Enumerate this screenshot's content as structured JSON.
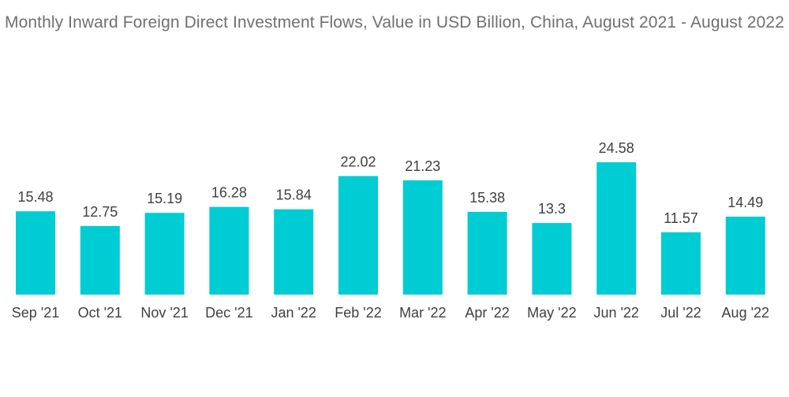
{
  "chart_data": {
    "type": "bar",
    "title": "Monthly Inward Foreign Direct Investment Flows, Value in USD Billion, China, August 2021 - August 2022",
    "xlabel": "",
    "ylabel": "",
    "categories": [
      "Sep '21",
      "Oct '21",
      "Nov '21",
      "Dec '21",
      "Jan '22",
      "Feb '22",
      "Mar '22",
      "Apr '22",
      "May '22",
      "Jun '22",
      "Jul '22",
      "Aug '22"
    ],
    "values": [
      15.48,
      12.75,
      15.19,
      16.28,
      15.84,
      22.02,
      21.23,
      15.38,
      13.3,
      24.58,
      11.57,
      14.49
    ],
    "value_labels": [
      "15.48",
      "12.75",
      "15.19",
      "16.28",
      "15.84",
      "22.02",
      "21.23",
      "15.38",
      "13.3",
      "24.58",
      "11.57",
      "14.49"
    ],
    "ylim": [
      0,
      24.58
    ],
    "grid": false,
    "legend": "none",
    "bar_color": "#00CCD3",
    "title_color": "#707070",
    "label_color": "#404040"
  }
}
